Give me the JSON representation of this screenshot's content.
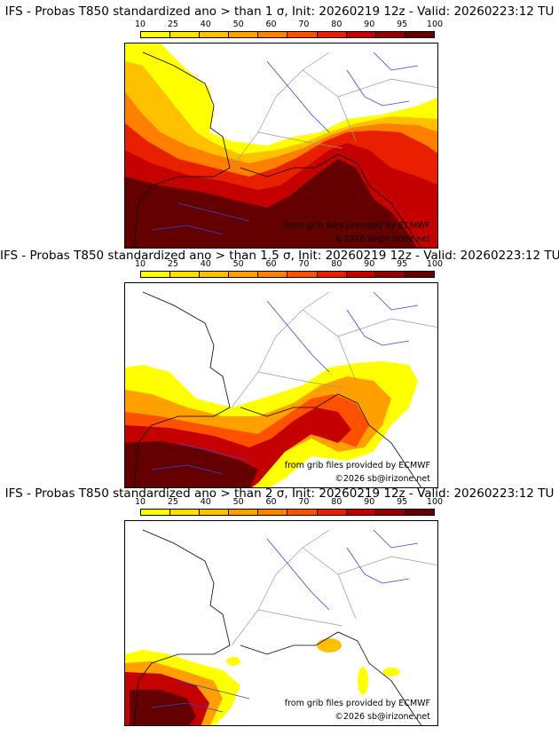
{
  "colorbar": {
    "labels": [
      "10",
      "25",
      "40",
      "50",
      "60",
      "70",
      "80",
      "90",
      "95",
      "100"
    ],
    "colors": [
      "#ffff00",
      "#ffe000",
      "#ffc000",
      "#ff9f00",
      "#ff7f00",
      "#ff5000",
      "#e82000",
      "#c40000",
      "#940000",
      "#640000"
    ]
  },
  "credits": {
    "source": "from grib files provided by ECMWF",
    "copyright": "©2026 sb@irizone.net"
  },
  "panels": [
    {
      "title": "IFS - Probas T850  standardized ano > than 1 σ, Init: 20260219 12z - Valid: 20260223:12 TU"
    },
    {
      "title": "IFS - Probas T850  standardized ano > than 1.5 σ, Init: 20260219 12z - Valid: 20260223:12 TU"
    },
    {
      "title": "IFS - Probas T850  standardized ano > than 2 σ, Init: 20260219 12z - Valid: 20260223:12 TU"
    }
  ]
}
